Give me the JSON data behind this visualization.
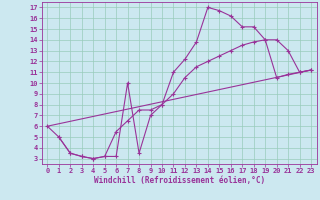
{
  "xlabel": "Windchill (Refroidissement éolien,°C)",
  "bg_color": "#cce8f0",
  "line_color": "#993399",
  "grid_color": "#99ccbb",
  "xlim": [
    -0.5,
    23.5
  ],
  "ylim": [
    2.5,
    17.5
  ],
  "xticks": [
    0,
    1,
    2,
    3,
    4,
    5,
    6,
    7,
    8,
    9,
    10,
    11,
    12,
    13,
    14,
    15,
    16,
    17,
    18,
    19,
    20,
    21,
    22,
    23
  ],
  "yticks": [
    3,
    4,
    5,
    6,
    7,
    8,
    9,
    10,
    11,
    12,
    13,
    14,
    15,
    16,
    17
  ],
  "curve1_x": [
    0,
    1,
    2,
    3,
    4,
    5,
    6,
    7,
    8,
    9,
    10,
    11,
    12,
    13,
    14,
    15,
    16,
    17,
    18,
    19,
    20,
    21,
    22,
    23
  ],
  "curve1_y": [
    6.0,
    5.0,
    3.5,
    3.2,
    3.0,
    3.2,
    3.2,
    10.0,
    3.5,
    7.0,
    8.0,
    11.0,
    12.2,
    13.8,
    17.0,
    16.7,
    16.2,
    15.2,
    15.2,
    14.0,
    14.0,
    13.0,
    11.0,
    11.2
  ],
  "curve2_x": [
    1,
    2,
    3,
    4,
    5,
    6,
    7,
    8,
    9,
    10,
    11,
    12,
    13,
    14,
    15,
    16,
    17,
    18,
    19,
    20,
    21,
    22,
    23
  ],
  "curve2_y": [
    5.0,
    3.5,
    3.2,
    3.0,
    3.2,
    5.5,
    6.5,
    7.5,
    7.5,
    8.0,
    9.0,
    10.5,
    11.5,
    12.0,
    12.5,
    13.0,
    13.5,
    13.8,
    14.0,
    10.5,
    10.8,
    11.0,
    11.2
  ],
  "curve3_x": [
    0,
    23
  ],
  "curve3_y": [
    6.0,
    11.2
  ]
}
